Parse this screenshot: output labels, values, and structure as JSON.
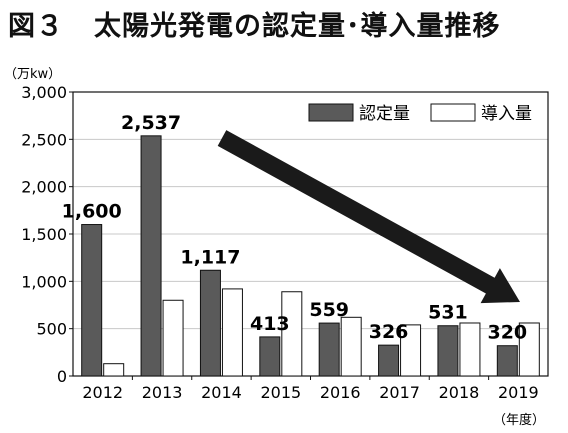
{
  "title": {
    "figure_label": "図３",
    "text": "太陽光発電の認定量･導入量推移"
  },
  "colors": {
    "certified": "#5a5a5a",
    "introduced": "#ffffff",
    "arrow": "#1a1a1a",
    "grid": "#c8c8c8"
  },
  "chart_data": {
    "type": "bar",
    "y_unit": "（万kw）",
    "x_unit": "（年度）",
    "categories": [
      "2012",
      "2013",
      "2014",
      "2015",
      "2016",
      "2017",
      "2018",
      "2019"
    ],
    "series": [
      {
        "name": "認定量",
        "values": [
          1600,
          2537,
          1117,
          413,
          559,
          326,
          531,
          320
        ],
        "labels": [
          "1,600",
          "2,537",
          "1,117",
          "413",
          "559",
          "326",
          "531",
          "320"
        ]
      },
      {
        "name": "導入量",
        "values": [
          130,
          800,
          920,
          890,
          620,
          540,
          560,
          560
        ]
      }
    ],
    "ylim": [
      0,
      3000
    ],
    "yticks": [
      0,
      500,
      1000,
      1500,
      2000,
      2500,
      3000
    ],
    "ytick_labels": [
      "0",
      "500",
      "1,000",
      "1,500",
      "2,000",
      "2,500",
      "3,000"
    ],
    "grid": true,
    "legend_position": "top-right",
    "annotation": "downward-trend-arrow"
  }
}
